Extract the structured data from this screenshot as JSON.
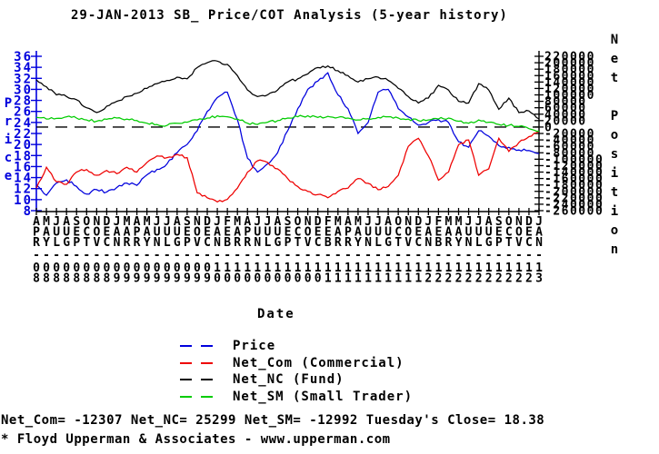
{
  "title": "29-JAN-2013 SB_ Price/COT Analysis (5-year history)",
  "footer": {
    "stats_line": "Net_Com= -12307 Net_NC= 25299 Net_SM= -12992 Tuesday's Close= 18.38",
    "credit_line": "* Floyd Upperman & Associates - www.upperman.com"
  },
  "chart_data": {
    "type": "line",
    "title": "29-JAN-2013 SB_ Price/COT Analysis (5-year history)",
    "xlabel": "Date",
    "grid": false,
    "legend_position": "bottom",
    "zero_line_dashed": 0,
    "y_left": {
      "label": "Price",
      "min": 8,
      "max": 36,
      "step": 2,
      "color": "#0000dd"
    },
    "y_right": {
      "label": "Net Position",
      "min": -260000,
      "max": 220000,
      "step": 20000,
      "color": "#000000"
    },
    "x_months": [
      "APR",
      "MAY",
      "JUL",
      "AUG",
      "SEP",
      "OCT",
      "NOV",
      "DEC",
      "JAN",
      "MAR",
      "APR",
      "MAY",
      "JUN",
      "JUL",
      "AUG",
      "SEP",
      "NOV",
      "DEC",
      "JAN",
      "FEB",
      "MAR",
      "APR",
      "JUN",
      "JUL",
      "AUG",
      "SEP",
      "OCT",
      "NOV",
      "DEC",
      "FEB",
      "MAR",
      "APR",
      "MAY",
      "JUN",
      "JUL",
      "AUG",
      "OCT",
      "NOV",
      "DEC",
      "JAN",
      "FEB",
      "MAR",
      "MAY",
      "JUN",
      "JUL",
      "AUG",
      "SEP",
      "OCT",
      "NOV",
      "DEC",
      "JAN"
    ],
    "x_years": [
      "08",
      "08",
      "08",
      "08",
      "08",
      "08",
      "08",
      "08",
      "09",
      "09",
      "09",
      "09",
      "09",
      "09",
      "09",
      "09",
      "09",
      "09",
      "10",
      "10",
      "10",
      "10",
      "10",
      "10",
      "10",
      "10",
      "10",
      "10",
      "10",
      "11",
      "11",
      "11",
      "11",
      "11",
      "11",
      "11",
      "11",
      "11",
      "11",
      "12",
      "12",
      "12",
      "12",
      "12",
      "12",
      "12",
      "12",
      "12",
      "12",
      "12",
      "13"
    ],
    "series": [
      {
        "name": "Price",
        "axis": "left",
        "color": "#0000dd",
        "values": [
          12.7,
          10.8,
          13,
          13.6,
          12.4,
          11,
          11.8,
          11.4,
          12.2,
          13,
          12.6,
          14.5,
          15.5,
          16.5,
          18.5,
          20,
          22.5,
          26,
          28.5,
          29.5,
          24.5,
          17.5,
          15,
          16.5,
          18.5,
          22.5,
          26.5,
          30,
          31.5,
          33,
          29,
          26.5,
          22,
          24,
          29.5,
          30,
          26.5,
          25,
          23.5,
          24,
          24.5,
          24,
          20.5,
          19.5,
          22.5,
          21.5,
          19.8,
          19.5,
          19,
          18.9,
          18.38
        ]
      },
      {
        "name": "Net_Com (Commercial)",
        "axis": "right",
        "color": "#ee0000",
        "values": [
          -190000,
          -125000,
          -170000,
          -178000,
          -140000,
          -132000,
          -150000,
          -135000,
          -145000,
          -125000,
          -140000,
          -110000,
          -90000,
          -95000,
          -85000,
          -95000,
          -205000,
          -220000,
          -233000,
          -225000,
          -190000,
          -140000,
          -105000,
          -110000,
          -130000,
          -160000,
          -185000,
          -200000,
          -210000,
          -220000,
          -200000,
          -190000,
          -160000,
          -175000,
          -195000,
          -185000,
          -150000,
          -60000,
          -35000,
          -90000,
          -165000,
          -140000,
          -55000,
          -40000,
          -150000,
          -130000,
          -35000,
          -76000,
          -48000,
          -30000,
          -12307
        ]
      },
      {
        "name": "Net_NC (Fund)",
        "axis": "right",
        "color": "#000000",
        "values": [
          147000,
          125000,
          100000,
          95000,
          85000,
          60000,
          45000,
          65000,
          80000,
          95000,
          105000,
          120000,
          135000,
          145000,
          155000,
          150000,
          185000,
          200000,
          205000,
          195000,
          160000,
          115000,
          95000,
          100000,
          115000,
          140000,
          150000,
          165000,
          185000,
          190000,
          175000,
          160000,
          140000,
          150000,
          155000,
          145000,
          120000,
          95000,
          75000,
          90000,
          130000,
          115000,
          80000,
          75000,
          135000,
          115000,
          55000,
          90000,
          45000,
          50000,
          25299
        ]
      },
      {
        "name": "Net_SM (Small Trader)",
        "axis": "right",
        "color": "#00cc00",
        "values": [
          30000,
          25000,
          27000,
          32000,
          28000,
          22000,
          18000,
          24000,
          28000,
          25000,
          20000,
          12000,
          8000,
          5000,
          12000,
          15000,
          22000,
          28000,
          35000,
          32000,
          25000,
          12000,
          8000,
          15000,
          20000,
          28000,
          32000,
          35000,
          30000,
          33000,
          30000,
          28000,
          22000,
          26000,
          30000,
          32000,
          28000,
          25000,
          20000,
          22000,
          25000,
          28000,
          18000,
          12000,
          22000,
          15000,
          8000,
          5000,
          2000,
          -5000,
          -12992
        ]
      }
    ],
    "latest": {
      "net_com": -12307,
      "net_nc": 25299,
      "net_sm": -12992,
      "tuesdays_close": 18.38
    }
  }
}
